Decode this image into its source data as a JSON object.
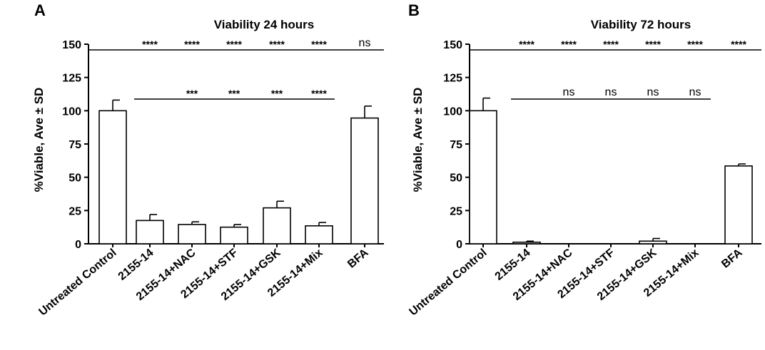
{
  "chart_data": [
    {
      "panel": "A",
      "type": "bar",
      "title": "Viability 24 hours",
      "ylabel": "%Viable, Ave ± SD",
      "xlabel": "",
      "ylim": [
        0,
        150
      ],
      "yticks": [
        "0",
        "25",
        "50",
        "75",
        "100",
        "125",
        "150"
      ],
      "categories": [
        "Untreated Control",
        "2155-14",
        "2155-14+NAC",
        "2155-14+STF",
        "2155-14+GSK",
        "2155-14+Mix",
        "BFA"
      ],
      "values": [
        100,
        17.5,
        14.5,
        12.5,
        27,
        13.5,
        94.5
      ],
      "errors": [
        8,
        4.5,
        2,
        2,
        5,
        2.5,
        9
      ],
      "significance": [
        {
          "range": [
            0,
            6
          ],
          "labels": [
            "",
            "****",
            "****",
            "****",
            "****",
            "****",
            "ns"
          ]
        },
        {
          "range": [
            1,
            5
          ],
          "labels": [
            "",
            "",
            "***",
            "***",
            "***",
            "****",
            ""
          ]
        }
      ]
    },
    {
      "panel": "B",
      "type": "bar",
      "title": "Viability 72 hours",
      "ylabel": "%Viable, Ave ± SD",
      "xlabel": "",
      "ylim": [
        0,
        150
      ],
      "yticks": [
        "0",
        "25",
        "50",
        "75",
        "100",
        "125",
        "150"
      ],
      "categories": [
        "Untreated Control",
        "2155-14",
        "2155-14+NAC",
        "2155-14+STF",
        "2155-14+GSK",
        "2155-14+Mix",
        "BFA"
      ],
      "values": [
        100,
        1.2,
        0,
        0,
        2,
        0,
        58.5
      ],
      "errors": [
        9.5,
        0.8,
        0,
        0,
        2,
        0,
        1.5
      ],
      "significance": [
        {
          "range": [
            0,
            6
          ],
          "labels": [
            "",
            "****",
            "****",
            "****",
            "****",
            "****",
            "****"
          ]
        },
        {
          "range": [
            1,
            5
          ],
          "labels": [
            "",
            "",
            "ns",
            "ns",
            "ns",
            "ns",
            ""
          ]
        }
      ]
    }
  ]
}
